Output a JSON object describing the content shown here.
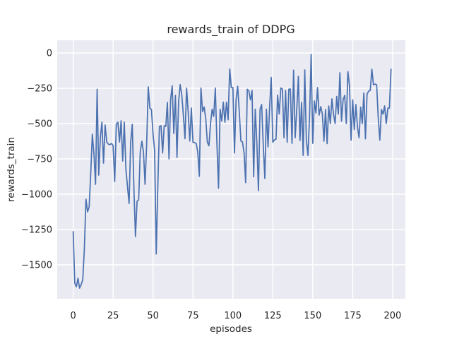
{
  "chart_data": {
    "type": "line",
    "title": "rewards_train of DDPG",
    "xlabel": "episodes",
    "ylabel": "rewards_train",
    "grid": true,
    "legend": "none",
    "xlim": [
      -10,
      208
    ],
    "ylim": [
      -1740,
      90
    ],
    "x_ticks": {
      "values": [
        0,
        25,
        50,
        75,
        100,
        125,
        150,
        175,
        200
      ],
      "labels": [
        "0",
        "25",
        "50",
        "75",
        "100",
        "125",
        "150",
        "175",
        "200"
      ]
    },
    "y_ticks": {
      "values": [
        0,
        -250,
        -500,
        -750,
        -1000,
        -1250,
        -1500
      ],
      "labels": [
        "0",
        "−250",
        "−500",
        "−750",
        "−1000",
        "−1250",
        "−1500"
      ]
    },
    "colors": {
      "line": "#4c72b0",
      "plot_bg": "#eaeaf2",
      "grid": "#ffffff",
      "text": "#262626",
      "figure_bg": "#ffffff"
    },
    "x_start": 0,
    "x_step": 1,
    "series": [
      {
        "name": "rewards_train",
        "values": [
          -1265,
          -1630,
          -1655,
          -1595,
          -1665,
          -1640,
          -1605,
          -1390,
          -1035,
          -1125,
          -1090,
          -850,
          -575,
          -715,
          -930,
          -257,
          -865,
          -600,
          -490,
          -780,
          -510,
          -630,
          -645,
          -650,
          -640,
          -655,
          -910,
          -505,
          -490,
          -630,
          -480,
          -765,
          -490,
          -820,
          -945,
          -1065,
          -630,
          -505,
          -950,
          -1300,
          -1050,
          -1040,
          -700,
          -625,
          -700,
          -930,
          -650,
          -240,
          -390,
          -400,
          -575,
          -692,
          -1423,
          -940,
          -520,
          -515,
          -708,
          -515,
          -520,
          -350,
          -750,
          -330,
          -232,
          -570,
          -300,
          -740,
          -348,
          -224,
          -298,
          -440,
          -607,
          -248,
          -415,
          -623,
          -390,
          -632,
          -635,
          -640,
          -700,
          -873,
          -248,
          -415,
          -382,
          -465,
          -632,
          -657,
          -500,
          -398,
          -450,
          -248,
          -640,
          -957,
          -398,
          -482,
          -348,
          -490,
          -348,
          -473,
          -113,
          -245,
          -245,
          -708,
          -332,
          -235,
          -415,
          -623,
          -630,
          -708,
          -918,
          -257,
          -270,
          -332,
          -265,
          -877,
          -398,
          -632,
          -975,
          -398,
          -365,
          -650,
          -888,
          -398,
          -665,
          -382,
          -173,
          -632,
          -615,
          -610,
          -298,
          -432,
          -248,
          -255,
          -600,
          -265,
          -632,
          -257,
          -255,
          -640,
          -122,
          -600,
          -400,
          -165,
          -620,
          -350,
          -725,
          -120,
          -620,
          -725,
          -450,
          -10,
          -640,
          -340,
          -425,
          -245,
          -440,
          -380,
          -430,
          -625,
          -400,
          -642,
          -375,
          -500,
          -325,
          -433,
          -500,
          -308,
          -433,
          -140,
          -483,
          -332,
          -300,
          -500,
          -132,
          -232,
          -617,
          -332,
          -542,
          -365,
          -525,
          -600,
          -383,
          -500,
          -283,
          -608,
          -292,
          -270,
          -265,
          -115,
          -225,
          -220,
          -225,
          -458,
          -617,
          -400,
          -433,
          -375,
          -500,
          -392,
          -390,
          -115
        ]
      }
    ]
  }
}
